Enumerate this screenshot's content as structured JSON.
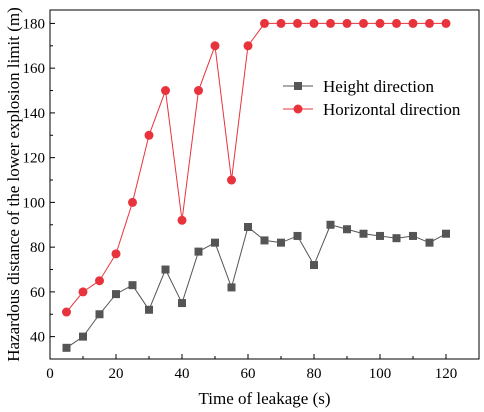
{
  "chart_data": {
    "type": "line",
    "title": "",
    "xlabel": "Time of leakage (s)",
    "ylabel": "Hazardous distance of the lower explosion limit (m)",
    "xlim": [
      0,
      130
    ],
    "ylim": [
      30,
      186
    ],
    "xticks": [
      0,
      20,
      40,
      60,
      80,
      100,
      120
    ],
    "yticks": [
      40,
      60,
      80,
      100,
      120,
      140,
      160,
      180
    ],
    "grid": false,
    "legend_position": "center-right",
    "series": [
      {
        "name": "Height direction",
        "color": "#555555",
        "marker": "square",
        "x": [
          5,
          10,
          15,
          20,
          25,
          30,
          35,
          40,
          45,
          50,
          55,
          60,
          65,
          70,
          75,
          80,
          85,
          90,
          95,
          100,
          105,
          110,
          115,
          120
        ],
        "y": [
          35,
          40,
          50,
          59,
          63,
          52,
          70,
          55,
          78,
          82,
          62,
          89,
          83,
          82,
          85,
          72,
          90,
          88,
          86,
          85,
          84,
          85,
          82,
          86
        ]
      },
      {
        "name": "Horizontal direction",
        "color": "#e8333c",
        "marker": "circle",
        "x": [
          5,
          10,
          15,
          20,
          25,
          30,
          35,
          40,
          45,
          50,
          55,
          60,
          65,
          70,
          75,
          80,
          85,
          90,
          95,
          100,
          105,
          110,
          115,
          120
        ],
        "y": [
          51,
          60,
          65,
          77,
          100,
          130,
          150,
          92,
          150,
          170,
          110,
          170,
          180,
          180,
          180,
          180,
          180,
          180,
          180,
          180,
          180,
          180,
          180,
          180
        ]
      }
    ]
  }
}
